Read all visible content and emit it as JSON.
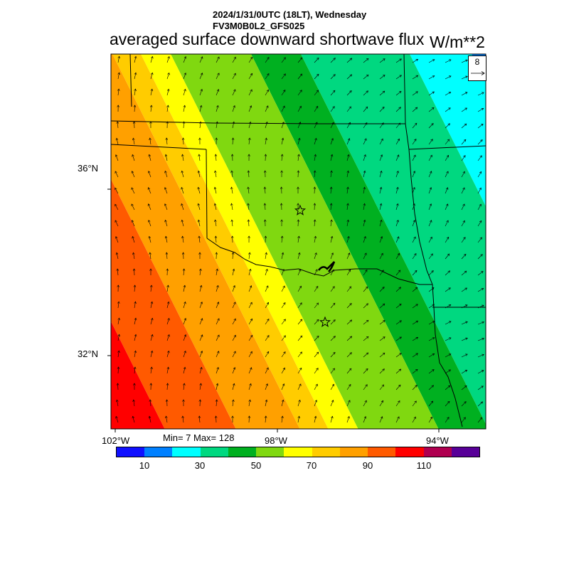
{
  "header": {
    "line1": "2024/1/31/0UTC (18LT), Wednesday",
    "line2": "FV3M0B0L2_GFS025",
    "title": "averaged surface downward shortwave flux",
    "units": "W/m**2"
  },
  "axes": {
    "lat_labels": [
      "36°N",
      "32°N"
    ],
    "lon_labels": [
      "102°W",
      "98°W",
      "94°W"
    ]
  },
  "stats": {
    "text": "Min= 7 Max= 128"
  },
  "colorbar": {
    "colors": [
      "#1010ff",
      "#0080ff",
      "#00ffff",
      "#00d880",
      "#00b020",
      "#80d810",
      "#ffff00",
      "#ffcc00",
      "#ffa000",
      "#ff5a00",
      "#ff0000",
      "#b00050",
      "#580098"
    ],
    "labels": [
      "10",
      "30",
      "50",
      "70",
      "90",
      "110"
    ]
  },
  "reference_vector": {
    "value": "8"
  },
  "markers": [
    {
      "name": "star-marker-north",
      "shape": "star"
    },
    {
      "name": "star-marker-south",
      "shape": "star"
    }
  ]
}
